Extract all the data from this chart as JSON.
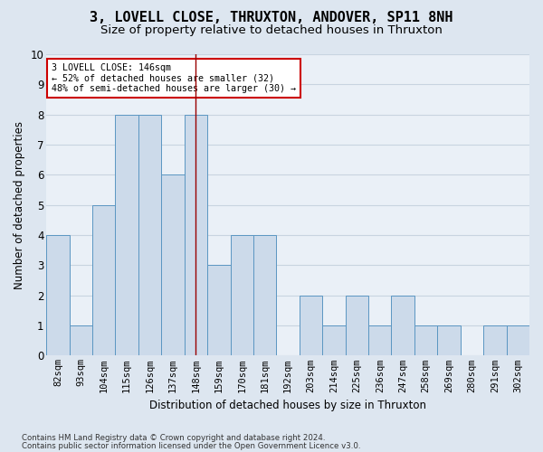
{
  "title": "3, LOVELL CLOSE, THRUXTON, ANDOVER, SP11 8NH",
  "subtitle": "Size of property relative to detached houses in Thruxton",
  "xlabel": "Distribution of detached houses by size in Thruxton",
  "ylabel": "Number of detached properties",
  "footer1": "Contains HM Land Registry data © Crown copyright and database right 2024.",
  "footer2": "Contains public sector information licensed under the Open Government Licence v3.0.",
  "categories": [
    "82sqm",
    "93sqm",
    "104sqm",
    "115sqm",
    "126sqm",
    "137sqm",
    "148sqm",
    "159sqm",
    "170sqm",
    "181sqm",
    "192sqm",
    "203sqm",
    "214sqm",
    "225sqm",
    "236sqm",
    "247sqm",
    "258sqm",
    "269sqm",
    "280sqm",
    "291sqm",
    "302sqm"
  ],
  "values": [
    4,
    1,
    5,
    8,
    8,
    6,
    8,
    3,
    4,
    4,
    0,
    2,
    1,
    2,
    1,
    2,
    1,
    1,
    0,
    1,
    1
  ],
  "bar_color": "#ccdaea",
  "bar_edge_color": "#5b96c2",
  "vline_index": 6,
  "vline_color": "#990000",
  "annotation_text": "3 LOVELL CLOSE: 146sqm\n← 52% of detached houses are smaller (32)\n48% of semi-detached houses are larger (30) →",
  "annotation_box_color": "#ffffff",
  "annotation_box_edge": "#cc0000",
  "ylim": [
    0,
    10
  ],
  "yticks": [
    0,
    1,
    2,
    3,
    4,
    5,
    6,
    7,
    8,
    9,
    10
  ],
  "bg_color": "#dde6f0",
  "plot_bg_color": "#eaf0f7",
  "grid_color": "#c8d4e0",
  "title_fontsize": 11,
  "subtitle_fontsize": 9.5,
  "label_fontsize": 8.5,
  "tick_fontsize": 7.5,
  "footer_fontsize": 6.2
}
